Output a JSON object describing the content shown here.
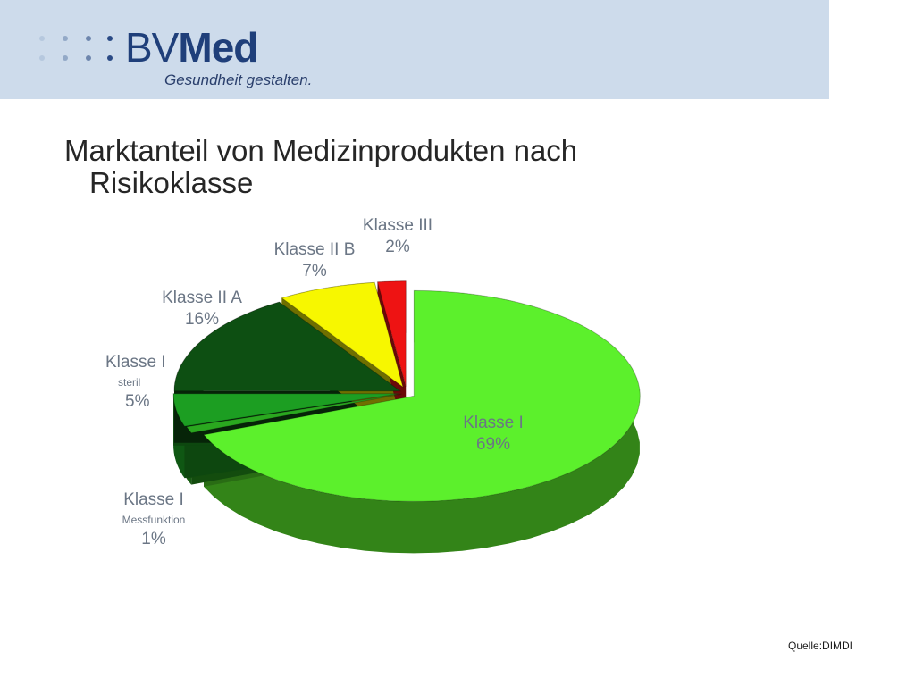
{
  "brand": {
    "logo_text": "BVMed",
    "tagline": "Gesundheit gestalten."
  },
  "slide": {
    "title_line1": "Marktanteil von Medizinprodukten nach",
    "title_line2": "Risikoklasse",
    "source": "Quelle:DIMDI"
  },
  "colors": {
    "header_bg": "#cddbeb",
    "klasse_i": "#5cf02c",
    "klasse_i_mess": "#2aa81f",
    "klasse_i_steril": "#1c9e22",
    "klasse_iia": "#0d4f12",
    "klasse_iib": "#f7f700",
    "klasse_iii": "#ee1313"
  },
  "chart_data": {
    "type": "pie",
    "title": "Marktanteil von Medizinprodukten nach Risikoklasse",
    "slices": [
      {
        "name": "Klasse I",
        "sub": "",
        "label": "Klasse I",
        "pct_label": "69%",
        "value": 69
      },
      {
        "name": "Klasse I Messfunktion",
        "sub": "Messfunktion",
        "label": "Klasse I",
        "pct_label": "1%",
        "value": 1
      },
      {
        "name": "Klasse I steril",
        "sub": "steril",
        "label": "Klasse I",
        "pct_label": "5%",
        "value": 5
      },
      {
        "name": "Klasse II A",
        "sub": "",
        "label": "Klasse II A",
        "pct_label": "16%",
        "value": 16
      },
      {
        "name": "Klasse II B",
        "sub": "",
        "label": "Klasse II B",
        "pct_label": "7%",
        "value": 7
      },
      {
        "name": "Klasse III",
        "sub": "",
        "label": "Klasse III",
        "pct_label": "2%",
        "value": 2
      }
    ]
  }
}
